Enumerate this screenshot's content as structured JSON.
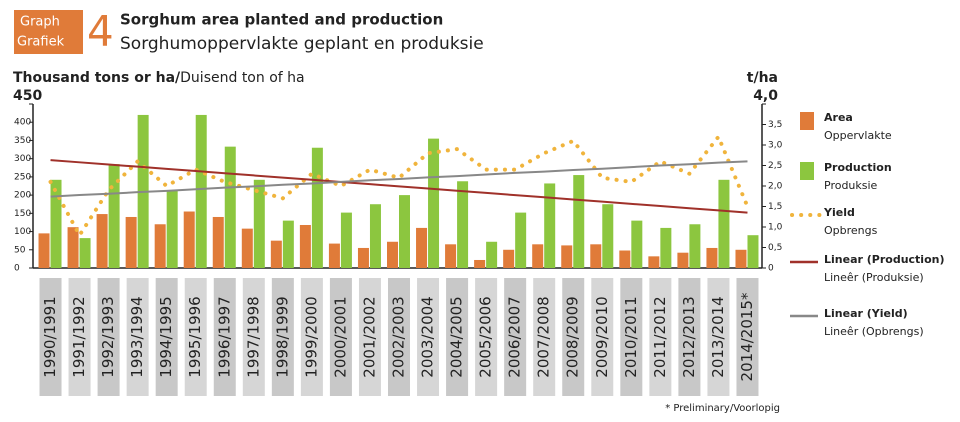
{
  "header": {
    "badge_en": "Graph",
    "badge_af": "Grafiek",
    "number": "4"
  },
  "chart_data": {
    "type": "bar_line",
    "title": "Sorghum area planted and production",
    "subtitle": "Sorghumoppervlakte geplant en produksie",
    "y_label_bold": "Thousand tons or ha/",
    "y_label": "Duisend ton of ha",
    "y2_label": "t/ha",
    "categories": [
      "1990/1991",
      "1991/1992",
      "1992/1993",
      "1993/1994",
      "1994/1995",
      "1995/1996",
      "1996/1997",
      "1997/1998",
      "1998/1999",
      "1999/2000",
      "2000/2001",
      "2001/2002",
      "2002/2003",
      "2003/2004",
      "2004/2005",
      "2005/2006",
      "2006/2007",
      "2007/2008",
      "2008/2009",
      "2009/2010",
      "2010/2011",
      "2011/2012",
      "2012/2013",
      "2013/2014",
      "2014/2015*"
    ],
    "ylim": [
      0,
      450
    ],
    "yticks": [
      0,
      50,
      100,
      150,
      200,
      250,
      300,
      350,
      400,
      450
    ],
    "y2lim": [
      0,
      4
    ],
    "y2ticks": [
      0,
      {
        "value": 0.5,
        "label": "0,5"
      },
      {
        "value": 1,
        "label": "1,0"
      },
      {
        "value": 1.5,
        "label": "1,5"
      },
      {
        "value": 2,
        "label": "2,0"
      },
      {
        "value": 2.5,
        "label": "2,5"
      },
      {
        "value": 3,
        "label": "3,0"
      },
      {
        "value": 3.5,
        "label": "3,5"
      },
      {
        "value": 4,
        "label": "4,0"
      }
    ],
    "series": [
      {
        "name": "Area",
        "name_af": "Oppervlakte",
        "kind": "bar",
        "color": "#e07b39",
        "values": [
          95,
          112,
          148,
          140,
          120,
          155,
          140,
          108,
          75,
          118,
          67,
          55,
          72,
          110,
          65,
          22,
          50,
          65,
          62,
          65,
          48,
          32,
          42,
          55,
          50
        ]
      },
      {
        "name": "Production",
        "name_af": "Produksie",
        "kind": "bar",
        "color": "#8cc63f",
        "values": [
          242,
          82,
          285,
          420,
          213,
          420,
          333,
          242,
          130,
          330,
          152,
          175,
          200,
          355,
          238,
          72,
          152,
          232,
          255,
          175,
          130,
          110,
          120,
          242,
          90
        ]
      },
      {
        "name": "Yield",
        "name_af": "Opbrengs",
        "kind": "dots",
        "axis": "y2",
        "color": "#f0b43c",
        "values": [
          2.1,
          0.8,
          1.9,
          2.6,
          2.0,
          2.4,
          2.1,
          1.9,
          1.7,
          2.3,
          2.0,
          2.4,
          2.2,
          2.8,
          2.9,
          2.4,
          2.4,
          2.8,
          3.1,
          2.2,
          2.1,
          2.6,
          2.3,
          3.2,
          1.5
        ]
      },
      {
        "name": "Linear (Production)",
        "name_af": "Lineêr (Produksie)",
        "kind": "line",
        "color": "#a0312a",
        "values": [
          296,
          290,
          284,
          278,
          272,
          266,
          260,
          254,
          248,
          242,
          236,
          230,
          224,
          218,
          212,
          206,
          200,
          194,
          188,
          182,
          176,
          170,
          164,
          158,
          152
        ]
      },
      {
        "name": "Linear (Yield)",
        "name_af": "Lineêr (Opbrengs)",
        "kind": "line",
        "axis": "y2",
        "color": "#888888",
        "values": [
          1.74,
          1.78,
          1.81,
          1.85,
          1.88,
          1.92,
          1.96,
          1.99,
          2.03,
          2.06,
          2.1,
          2.14,
          2.17,
          2.21,
          2.24,
          2.28,
          2.32,
          2.35,
          2.39,
          2.42,
          2.46,
          2.5,
          2.53,
          2.57,
          2.6
        ]
      }
    ],
    "footnote": "* Preliminary/Voorlopig"
  }
}
